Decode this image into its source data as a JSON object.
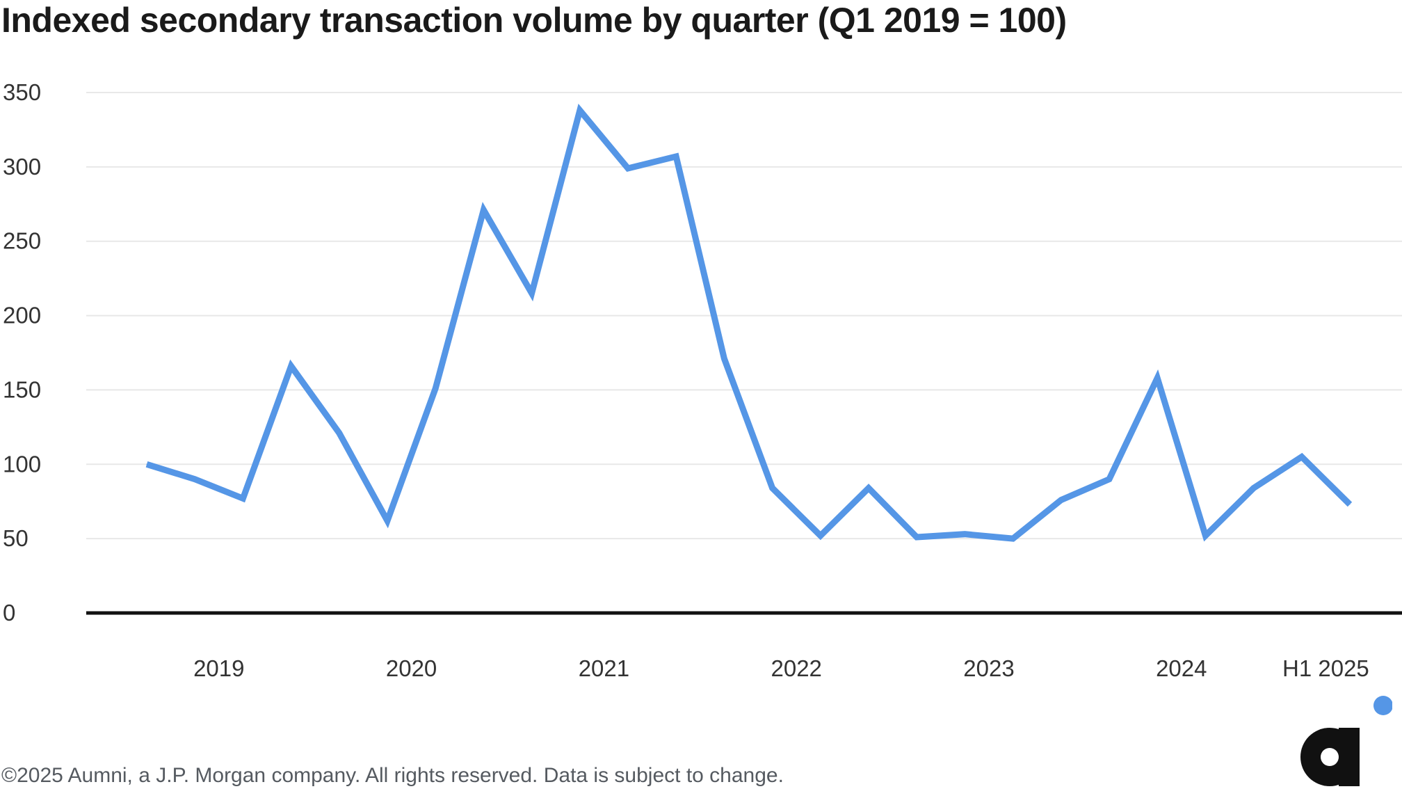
{
  "title": "Indexed secondary transaction volume by quarter (Q1 2019 = 100)",
  "footer": "©2025 Aumni, a J.P. Morgan company. All rights reserved. Data is subject to change.",
  "colors": {
    "line": "#5596e6",
    "grid": "#e8e8e8",
    "axis": "#111111",
    "text": "#333333",
    "logo_dot": "#5596e6",
    "logo": "#111111"
  },
  "logo_name": "aumni-logo",
  "chart_data": {
    "type": "line",
    "title": "Indexed secondary transaction volume by quarter (Q1 2019 = 100)",
    "xlabel": "",
    "ylabel": "",
    "ylim": [
      0,
      350
    ],
    "yticks": [
      "0",
      "50",
      "100",
      "150",
      "200",
      "250",
      "300",
      "350"
    ],
    "ytick_values": [
      0,
      50,
      100,
      150,
      200,
      250,
      300,
      350
    ],
    "grid": true,
    "year_labels": [
      {
        "label": "2019",
        "center_quarter": 1.5
      },
      {
        "label": "2020",
        "center_quarter": 5.5
      },
      {
        "label": "2021",
        "center_quarter": 9.5
      },
      {
        "label": "2022",
        "center_quarter": 13.5
      },
      {
        "label": "2023",
        "center_quarter": 17.5
      },
      {
        "label": "2024",
        "center_quarter": 21.5
      },
      {
        "label": "H1 2025",
        "center_quarter": 24.5
      }
    ],
    "x": [
      "Q1 2019",
      "Q2 2019",
      "Q3 2019",
      "Q4 2019",
      "Q1 2020",
      "Q2 2020",
      "Q3 2020",
      "Q4 2020",
      "Q1 2021",
      "Q2 2021",
      "Q3 2021",
      "Q4 2021",
      "Q1 2022",
      "Q2 2022",
      "Q3 2022",
      "Q4 2022",
      "Q1 2023",
      "Q2 2023",
      "Q3 2023",
      "Q4 2023",
      "Q1 2024",
      "Q2 2024",
      "Q3 2024",
      "Q4 2024",
      "Q1 2025",
      "Q2 2025"
    ],
    "series": [
      {
        "values": [
          100,
          90,
          77,
          166,
          121,
          62,
          151,
          271,
          215,
          338,
          299,
          307,
          171,
          84,
          52,
          84,
          51,
          53,
          50,
          76,
          90,
          158,
          52,
          84,
          105,
          73
        ]
      }
    ]
  }
}
